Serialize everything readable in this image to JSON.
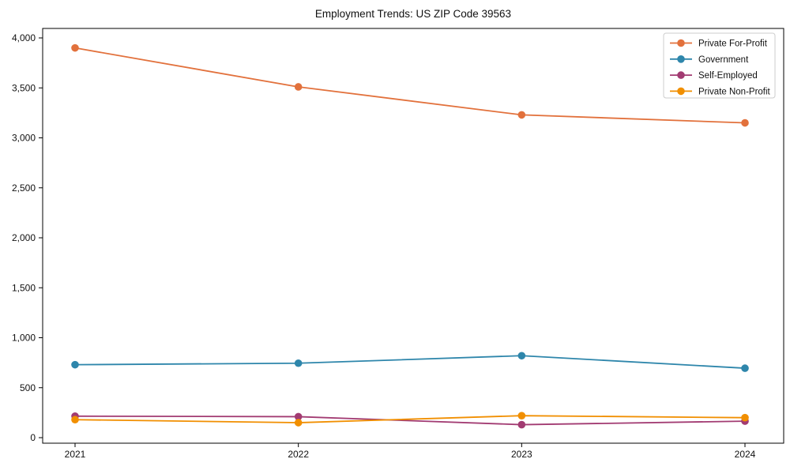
{
  "chart_data": {
    "type": "line",
    "title": "Employment Trends: US ZIP Code 39563",
    "xlabel": "",
    "ylabel": "",
    "x": [
      "2021",
      "2022",
      "2023",
      "2024"
    ],
    "ylim": [
      0,
      4000
    ],
    "ytick_labels": [
      "0",
      "500",
      "1,000",
      "1,500",
      "2,000",
      "2,500",
      "3,000",
      "3,500",
      "4,000"
    ],
    "grid": false,
    "legend_position": "upper right",
    "marker": "circle",
    "series": [
      {
        "name": "Private For-Profit",
        "color": "#E2713C",
        "values": [
          3900,
          3510,
          3230,
          3150
        ]
      },
      {
        "name": "Government",
        "color": "#2E86AB",
        "values": [
          730,
          745,
          820,
          695
        ]
      },
      {
        "name": "Self-Employed",
        "color": "#A23B72",
        "values": [
          215,
          210,
          130,
          165
        ]
      },
      {
        "name": "Private Non-Profit",
        "color": "#F18F01",
        "values": [
          180,
          150,
          220,
          200
        ]
      }
    ],
    "colors": {
      "axis": "#000000",
      "tick_label": "#111111",
      "legend_border": "#cccccc",
      "background": "#ffffff"
    }
  }
}
